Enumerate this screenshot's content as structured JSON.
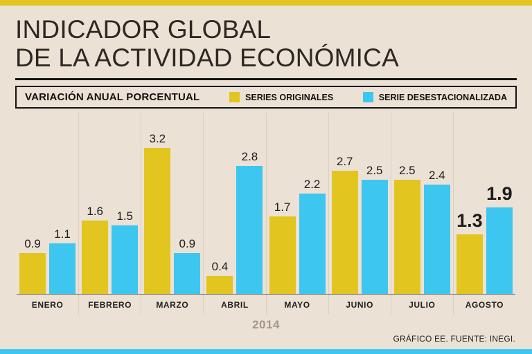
{
  "page": {
    "colors": {
      "background": "#ece1d5",
      "accent_yellow": "#e2c51f",
      "accent_cyan": "#3dc6f0",
      "text": "#262626",
      "muted": "#a39787"
    }
  },
  "header": {
    "title_line1": "INDICADOR GLOBAL",
    "title_line2": "DE LA ACTIVIDAD ECONÓMICA"
  },
  "legend": {
    "title": "VARIACIÓN ANUAL PORCENTUAL",
    "series1": "SERIES ORIGINALES",
    "series2": "SERIE DESESTACIONALIZADA"
  },
  "footer": {
    "credit": "GRÁFICO EE. FUENTE: INEGI."
  },
  "chart_data": {
    "type": "bar",
    "title": "INDICADOR GLOBAL DE LA ACTIVIDAD ECONÓMICA",
    "subtitle": "VARIACIÓN ANUAL PORCENTUAL",
    "categories": [
      "ENERO",
      "FEBRERO",
      "MARZO",
      "ABRIL",
      "MAYO",
      "JUNIO",
      "JULIO",
      "AGOSTO"
    ],
    "series": [
      {
        "name": "SERIES ORIGINALES",
        "color": "#e2c51f",
        "values": [
          0.9,
          1.6,
          3.2,
          0.4,
          1.7,
          2.7,
          2.5,
          1.3
        ]
      },
      {
        "name": "SERIE DESESTACIONALIZADA",
        "color": "#3dc6f0",
        "values": [
          1.1,
          1.5,
          0.9,
          2.8,
          2.2,
          2.5,
          2.4,
          1.9
        ]
      }
    ],
    "xlabel": "2014",
    "ylabel": "",
    "ylim": [
      0,
      3.5
    ],
    "grid": false,
    "value_labels": true,
    "legend_position": "top",
    "highlight_category": "AGOSTO"
  }
}
